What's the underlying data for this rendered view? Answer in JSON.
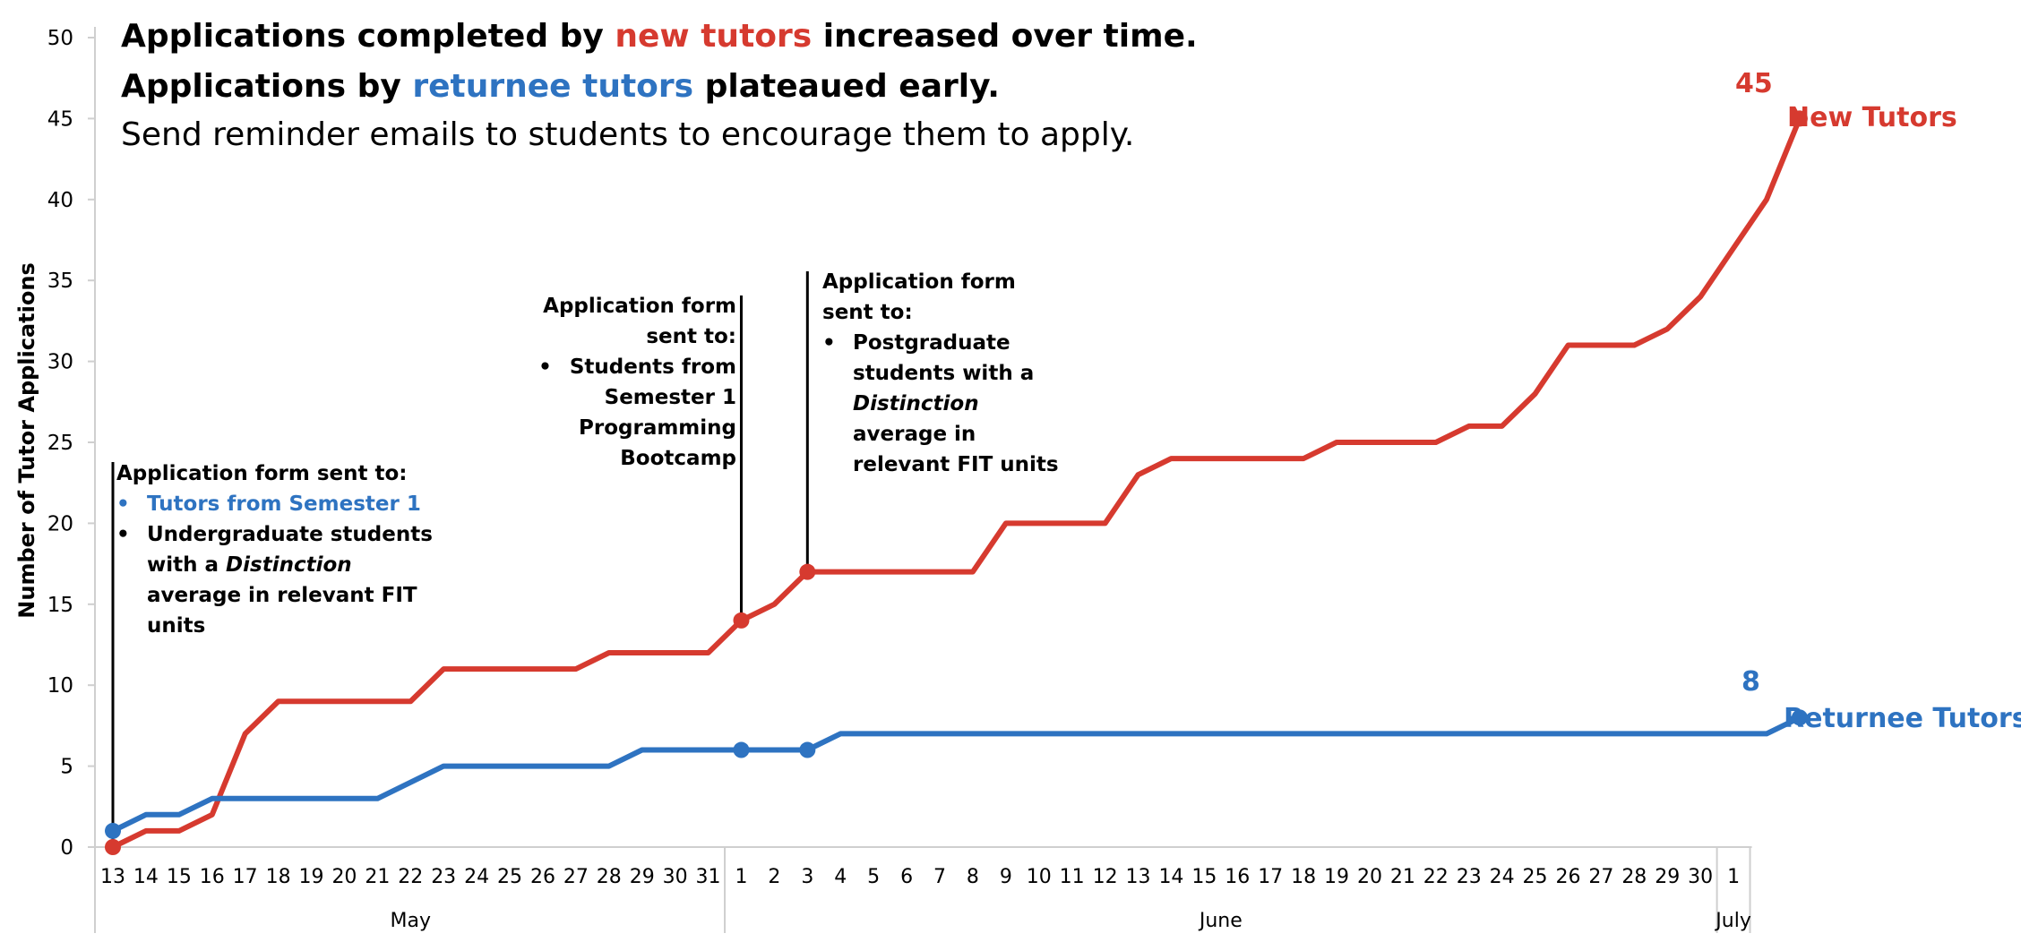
{
  "headline": {
    "line1": {
      "pre": "Applications completed by ",
      "highlight": "new tutors",
      "post": " increased over time."
    },
    "line2": {
      "pre": "Applications by ",
      "highlight": "returnee tutors",
      "post": " plateaued early."
    },
    "line3": "Send reminder emails to students to encourage them to apply."
  },
  "annotations": {
    "a1": {
      "heading": "Application form sent to:",
      "items": [
        "Tutors from Semester 1",
        "Undergraduate students with a Distinction average in relevant FIT units"
      ],
      "item2_parts": [
        "Undergraduate students with a ",
        "Distinction",
        " average in relevant FIT units"
      ]
    },
    "a2": {
      "heading": "Application form sent to:",
      "items": [
        "Students from Semester 1 Programming Bootcamp"
      ]
    },
    "a3": {
      "heading": "Application form sent to:",
      "item_parts": [
        "Postgraduate students with a ",
        "Distinction",
        " average in relevant FIT units"
      ]
    }
  },
  "colors": {
    "new": "#d63a2f",
    "returnee": "#2e73c1",
    "axis": "#cfcfcf",
    "text": "#000000"
  },
  "chart_data": {
    "type": "line",
    "title": "",
    "xlabel": "",
    "ylabel": "Number of Tutor Applications",
    "ylim": [
      0,
      50
    ],
    "yticks": [
      0,
      5,
      10,
      15,
      20,
      25,
      30,
      35,
      40,
      45,
      50
    ],
    "grid": false,
    "month_groups": [
      {
        "name": "May",
        "days": [
          "13",
          "14",
          "15",
          "16",
          "17",
          "18",
          "19",
          "20",
          "21",
          "22",
          "23",
          "24",
          "25",
          "26",
          "27",
          "28",
          "29",
          "30",
          "31"
        ]
      },
      {
        "name": "June",
        "days": [
          "1",
          "2",
          "3",
          "4",
          "5",
          "6",
          "7",
          "8",
          "9",
          "10",
          "11",
          "12",
          "13",
          "14",
          "15",
          "16",
          "17",
          "18",
          "19",
          "20",
          "21",
          "22",
          "23",
          "24",
          "25",
          "26",
          "27",
          "28",
          "29",
          "30"
        ]
      },
      {
        "name": "July",
        "days": [
          "1"
        ]
      }
    ],
    "series": [
      {
        "name": "New Tutors",
        "values": [
          0,
          1,
          1,
          2,
          7,
          9,
          9,
          9,
          9,
          9,
          11,
          11,
          11,
          11,
          11,
          12,
          12,
          12,
          12,
          14,
          15,
          17,
          17,
          17,
          17,
          17,
          17,
          20,
          20,
          20,
          20,
          23,
          24,
          24,
          24,
          24,
          24,
          25,
          25,
          25,
          25,
          26,
          26,
          28,
          31,
          31,
          31,
          32,
          34,
          37,
          40,
          45
        ],
        "markers": [
          0,
          19,
          21,
          51
        ],
        "end_label": "45"
      },
      {
        "name": "Returnee Tutors",
        "values": [
          1,
          2,
          2,
          3,
          3,
          3,
          3,
          3,
          3,
          4,
          5,
          5,
          5,
          5,
          5,
          5,
          6,
          6,
          6,
          6,
          6,
          6,
          7,
          7,
          7,
          7,
          7,
          7,
          7,
          7,
          7,
          7,
          7,
          7,
          7,
          7,
          7,
          7,
          7,
          7,
          7,
          7,
          7,
          7,
          7,
          7,
          7,
          7,
          7,
          7,
          7,
          8
        ],
        "markers": [
          0,
          19,
          21,
          51
        ],
        "end_label": "8"
      }
    ]
  }
}
